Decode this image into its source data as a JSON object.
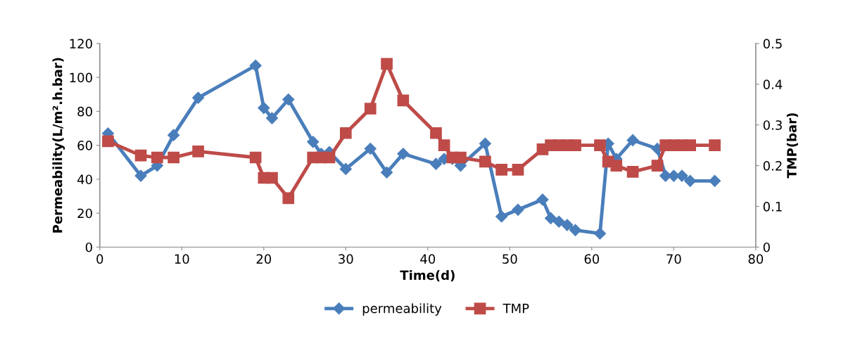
{
  "chart_data": {
    "type": "line",
    "xlabel": "Time(d)",
    "ylabel": "Permeability(L/m².h.bar)",
    "y2label": "TMP(bar)",
    "xlim": [
      0,
      80
    ],
    "xticks": [
      0,
      10,
      20,
      30,
      40,
      50,
      60,
      70,
      80
    ],
    "ylim": [
      0,
      120
    ],
    "yticks": [
      0,
      20,
      40,
      60,
      80,
      100,
      120
    ],
    "y2lim": [
      0,
      0.5
    ],
    "y2ticks": [
      0,
      0.1,
      0.2,
      0.3,
      0.4,
      0.5
    ],
    "grid": false,
    "legend": "bottom",
    "line_style": "solid",
    "series": [
      {
        "name": "permeability",
        "color": "#4a7ebb",
        "marker": "diamond",
        "x": [
          1,
          5,
          7,
          9,
          12,
          19,
          20,
          21,
          23,
          26,
          27,
          28,
          30,
          33,
          35,
          37,
          41,
          42,
          43,
          44,
          47,
          49,
          51,
          54,
          55,
          56,
          57,
          58,
          61,
          62,
          63,
          65,
          68,
          69,
          70,
          71,
          72,
          75
        ],
        "values": [
          67,
          42,
          48,
          66,
          88,
          107,
          82,
          76,
          87,
          62,
          55,
          56,
          46,
          58,
          44,
          55,
          49,
          52,
          52,
          48,
          61,
          18,
          22,
          28,
          17,
          15,
          13,
          10,
          8,
          61,
          52,
          63,
          58,
          42,
          42,
          42,
          39,
          39
        ]
      },
      {
        "name": "TMP",
        "color": "#be4b48",
        "marker": "square",
        "axis": "y2",
        "x": [
          1,
          5,
          7,
          9,
          12,
          19,
          20,
          21,
          23,
          26,
          27,
          28,
          30,
          33,
          35,
          37,
          41,
          42,
          43,
          44,
          47,
          49,
          51,
          54,
          55,
          56,
          57,
          58,
          61,
          62,
          63,
          65,
          68,
          69,
          70,
          71,
          72,
          75
        ],
        "values": [
          0.26,
          0.225,
          0.22,
          0.22,
          0.235,
          0.22,
          0.17,
          0.17,
          0.12,
          0.22,
          0.22,
          0.22,
          0.28,
          0.34,
          0.45,
          0.36,
          0.28,
          0.25,
          0.22,
          0.22,
          0.21,
          0.19,
          0.19,
          0.24,
          0.25,
          0.25,
          0.25,
          0.25,
          0.25,
          0.21,
          0.2,
          0.185,
          0.2,
          0.25,
          0.25,
          0.25,
          0.25,
          0.25
        ]
      }
    ]
  }
}
